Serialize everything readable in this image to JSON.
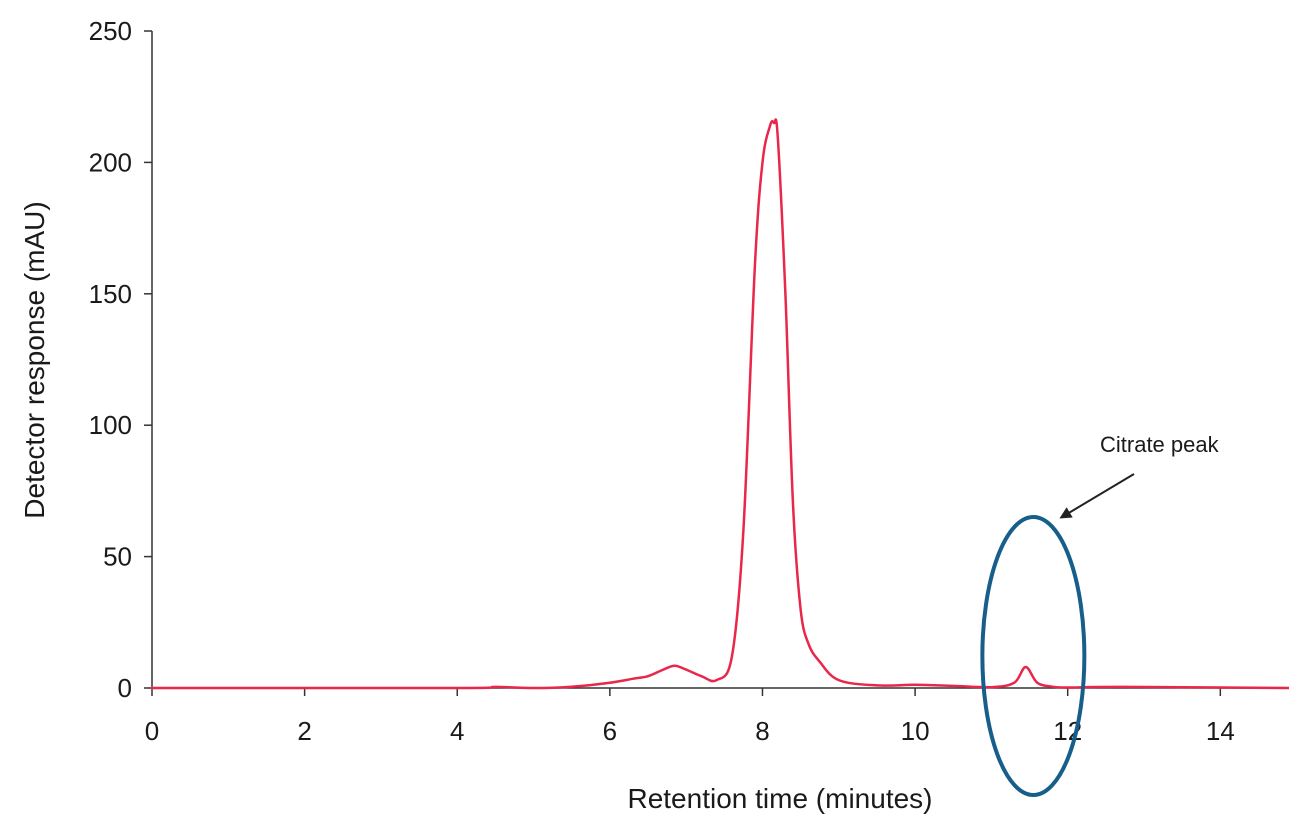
{
  "chart_data": {
    "type": "line",
    "title": "",
    "xlabel": "Retention time (minutes)",
    "ylabel": "Detector response (mAU)",
    "xlim": [
      0,
      14.9
    ],
    "ylim": [
      0,
      250
    ],
    "xticks": [
      0,
      2,
      4,
      6,
      8,
      10,
      12,
      14
    ],
    "yticks": [
      0,
      50,
      100,
      150,
      200,
      250
    ],
    "grid": false,
    "legend": "none",
    "line_color": "#e8274b",
    "series": [
      {
        "x": [
          0.0,
          4.0,
          4.5,
          5.0,
          5.5,
          6.0,
          6.3,
          6.5,
          6.7,
          6.85,
          7.0,
          7.2,
          7.4,
          7.6,
          7.75,
          7.9,
          8.0,
          8.1,
          8.15,
          8.2,
          8.3,
          8.4,
          8.5,
          8.6,
          8.75,
          9.0,
          9.5,
          10.0,
          10.5,
          11.0,
          11.3,
          11.45,
          11.6,
          11.8,
          12.0,
          12.7,
          14.9
        ],
        "y": [
          0,
          0,
          0.4,
          0,
          0.5,
          2,
          3.5,
          4.5,
          7,
          8.5,
          7,
          4.5,
          3,
          12,
          60,
          160,
          200,
          214,
          215,
          210,
          150,
          70,
          30,
          17,
          10,
          3,
          1,
          1.2,
          0.8,
          0.3,
          2,
          8,
          2,
          0.5,
          0.2,
          0.4,
          0
        ]
      }
    ],
    "annotation": {
      "text": "Citrate peak",
      "ellipse_color": "#175f8a",
      "arrow_color": "#222222"
    }
  }
}
